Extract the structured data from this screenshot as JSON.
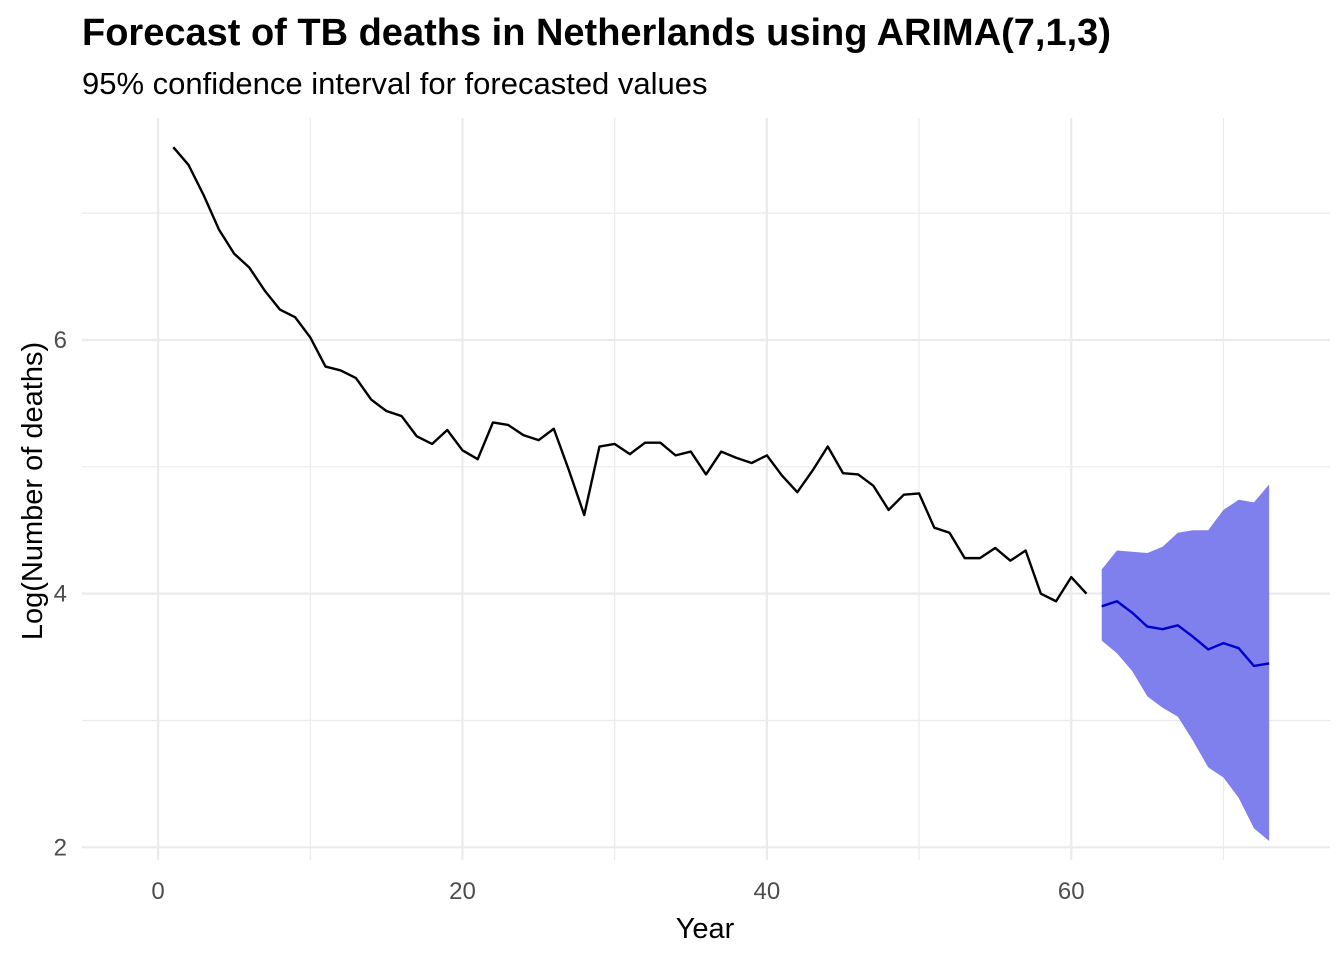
{
  "chart_data": {
    "type": "line",
    "title": "Forecast of TB deaths in Netherlands using ARIMA(7,1,3)",
    "subtitle": "95% confidence interval for forecasted values",
    "xlabel": "Year",
    "ylabel": "Log(Number of deaths)",
    "xlim": [
      -5,
      77
    ],
    "ylim": [
      1.9,
      7.75
    ],
    "x_ticks": [
      0,
      20,
      40,
      60
    ],
    "y_ticks": [
      2,
      4,
      6
    ],
    "x_tick_labels": [
      "0",
      "20",
      "40",
      "60"
    ],
    "y_tick_labels": [
      "2",
      "4",
      "6"
    ],
    "grid": true,
    "colors": {
      "observed": "#000000",
      "forecast": "#0000cd",
      "interval": "#7f7fed",
      "grid": "#ebebeb"
    },
    "series": [
      {
        "role": "observed",
        "x": [
          1,
          2,
          3,
          4,
          5,
          6,
          7,
          8,
          9,
          10,
          11,
          12,
          13,
          14,
          15,
          16,
          17,
          18,
          19,
          20,
          21,
          22,
          23,
          24,
          25,
          26,
          27,
          28,
          29,
          30,
          31,
          32,
          33,
          34,
          35,
          36,
          37,
          38,
          39,
          40,
          41,
          42,
          43,
          44,
          45,
          46,
          47,
          48,
          49,
          50,
          51,
          52,
          53,
          54,
          55,
          56,
          57,
          58,
          59,
          60,
          61
        ],
        "y": [
          7.52,
          7.38,
          7.14,
          6.87,
          6.68,
          6.57,
          6.39,
          6.24,
          6.18,
          6.02,
          5.79,
          5.76,
          5.7,
          5.53,
          5.44,
          5.4,
          5.24,
          5.18,
          5.29,
          5.13,
          5.06,
          5.35,
          5.33,
          5.25,
          5.21,
          5.3,
          4.97,
          4.62,
          5.16,
          5.18,
          5.1,
          5.19,
          5.19,
          5.09,
          5.12,
          4.94,
          5.12,
          5.07,
          5.03,
          5.09,
          4.93,
          4.8,
          4.97,
          5.16,
          4.95,
          4.94,
          4.85,
          4.66,
          4.78,
          4.79,
          4.52,
          4.48,
          4.28,
          4.28,
          4.36,
          4.26,
          4.34,
          4.0,
          3.94,
          4.13,
          4.0
        ]
      },
      {
        "role": "forecast",
        "x": [
          62,
          63,
          64,
          65,
          66,
          67,
          68,
          69,
          70,
          71,
          72,
          73
        ],
        "y": [
          3.9,
          3.94,
          3.85,
          3.74,
          3.72,
          3.75,
          3.66,
          3.56,
          3.61,
          3.57,
          3.43,
          3.45
        ],
        "lower": [
          3.63,
          3.53,
          3.39,
          3.19,
          3.1,
          3.03,
          2.84,
          2.63,
          2.55,
          2.39,
          2.15,
          2.05
        ],
        "upper": [
          4.19,
          4.34,
          4.33,
          4.32,
          4.37,
          4.48,
          4.5,
          4.5,
          4.66,
          4.74,
          4.72,
          4.86
        ]
      }
    ]
  }
}
